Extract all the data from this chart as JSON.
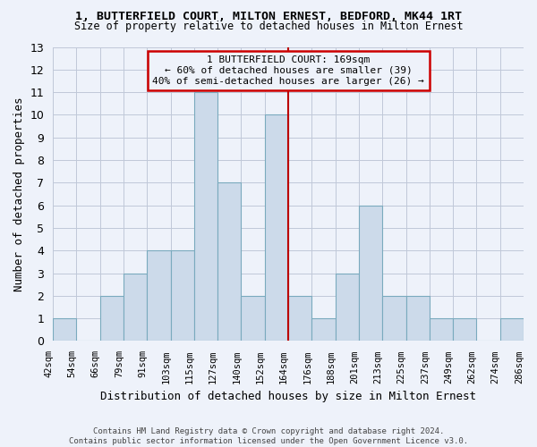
{
  "title": "1, BUTTERFIELD COURT, MILTON ERNEST, BEDFORD, MK44 1RT",
  "subtitle": "Size of property relative to detached houses in Milton Ernest",
  "xlabel": "Distribution of detached houses by size in Milton Ernest",
  "ylabel": "Number of detached properties",
  "footer1": "Contains HM Land Registry data © Crown copyright and database right 2024.",
  "footer2": "Contains public sector information licensed under the Open Government Licence v3.0.",
  "bin_labels": [
    "42sqm",
    "54sqm",
    "66sqm",
    "79sqm",
    "91sqm",
    "103sqm",
    "115sqm",
    "127sqm",
    "140sqm",
    "152sqm",
    "164sqm",
    "176sqm",
    "188sqm",
    "201sqm",
    "213sqm",
    "225sqm",
    "237sqm",
    "249sqm",
    "262sqm",
    "274sqm",
    "286sqm"
  ],
  "bar_heights": [
    1,
    0,
    2,
    3,
    4,
    4,
    11,
    7,
    2,
    10,
    2,
    1,
    3,
    6,
    2,
    2,
    1,
    1,
    0,
    1
  ],
  "bar_color": "#ccdaea",
  "bar_edge_color": "#7aaabe",
  "grid_color": "#c0c8d8",
  "property_line_color": "#bb0000",
  "annotation_text": "1 BUTTERFIELD COURT: 169sqm\n← 60% of detached houses are smaller (39)\n40% of semi-detached houses are larger (26) →",
  "annotation_box_color": "#cc0000",
  "ylim": [
    0,
    13
  ],
  "yticks": [
    0,
    1,
    2,
    3,
    4,
    5,
    6,
    7,
    8,
    9,
    10,
    11,
    12,
    13
  ],
  "background_color": "#eef2fa"
}
